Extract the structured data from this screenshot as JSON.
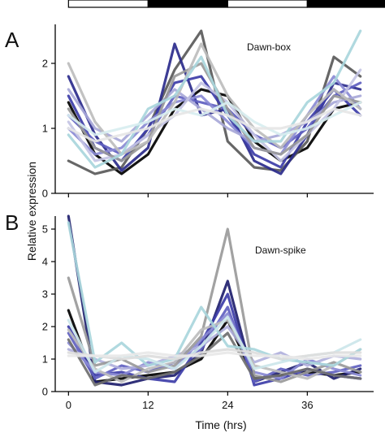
{
  "chart_data": [
    {
      "panel": "A",
      "type": "line",
      "annotation": "Dawn-box",
      "x": [
        0,
        4,
        8,
        12,
        16,
        20,
        24,
        28,
        32,
        36,
        40,
        44
      ],
      "xlim": [
        -2,
        46
      ],
      "ylim": [
        0,
        2.6
      ],
      "yticks": [
        0,
        1,
        2
      ],
      "series": [
        {
          "color": "#000000",
          "values": [
            1.4,
            0.6,
            0.3,
            0.6,
            1.3,
            1.6,
            1.5,
            0.8,
            0.5,
            0.7,
            1.3,
            1.4
          ]
        },
        {
          "color": "#5a5a5a",
          "values": [
            0.5,
            0.3,
            0.4,
            1.0,
            1.9,
            2.5,
            0.8,
            0.4,
            0.35,
            0.8,
            2.1,
            1.8
          ]
        },
        {
          "color": "#2b2b8c",
          "values": [
            1.8,
            0.9,
            0.35,
            0.7,
            2.3,
            1.2,
            1.3,
            0.5,
            0.3,
            0.9,
            1.7,
            1.6
          ]
        },
        {
          "color": "#3d3da8",
          "values": [
            1.5,
            0.7,
            0.5,
            1.0,
            1.7,
            1.8,
            1.2,
            0.6,
            0.4,
            1.1,
            1.6,
            1.2
          ]
        },
        {
          "color": "#6060c0",
          "values": [
            1.2,
            0.8,
            0.6,
            0.9,
            1.5,
            1.4,
            1.3,
            0.9,
            0.7,
            1.0,
            1.5,
            1.7
          ]
        },
        {
          "color": "#8a8ad4",
          "values": [
            1.0,
            0.6,
            0.7,
            1.1,
            1.4,
            1.5,
            1.1,
            0.7,
            0.6,
            1.2,
            1.8,
            1.3
          ]
        },
        {
          "color": "#a8a8d8",
          "values": [
            1.6,
            1.0,
            0.8,
            1.2,
            1.6,
            1.3,
            1.0,
            0.8,
            0.9,
            1.1,
            1.4,
            1.5
          ]
        },
        {
          "color": "#c4c4e4",
          "values": [
            1.1,
            0.5,
            0.6,
            0.9,
            1.2,
            1.7,
            1.4,
            0.9,
            0.5,
            0.9,
            1.3,
            1.9
          ]
        },
        {
          "color": "#9a9a9a",
          "values": [
            1.3,
            0.7,
            0.5,
            0.8,
            1.8,
            2.0,
            1.3,
            0.7,
            0.6,
            0.9,
            1.5,
            1.4
          ]
        },
        {
          "color": "#bdbdbd",
          "values": [
            2.0,
            1.1,
            0.6,
            0.8,
            1.4,
            2.3,
            1.5,
            1.0,
            0.7,
            1.2,
            1.6,
            1.3
          ]
        },
        {
          "color": "#a9d6dc",
          "values": [
            0.9,
            0.4,
            0.6,
            1.3,
            1.5,
            2.1,
            1.2,
            0.8,
            0.8,
            1.4,
            1.7,
            2.5
          ]
        },
        {
          "color": "#d8eef0",
          "values": [
            1.2,
            0.9,
            1.0,
            1.1,
            1.3,
            1.2,
            1.4,
            1.1,
            0.9,
            1.0,
            1.2,
            1.4
          ]
        },
        {
          "color": "#e6e6e6",
          "values": [
            1.0,
            0.8,
            0.9,
            1.0,
            1.2,
            1.3,
            1.2,
            1.0,
            1.0,
            1.1,
            1.3,
            1.2
          ]
        }
      ]
    },
    {
      "panel": "B",
      "type": "line",
      "annotation": "Dawn-spike",
      "x": [
        0,
        4,
        8,
        12,
        16,
        20,
        24,
        28,
        32,
        36,
        40,
        44
      ],
      "xlim": [
        -2,
        46
      ],
      "ylim": [
        0,
        5.4
      ],
      "yticks": [
        0,
        1,
        2,
        3,
        4,
        5
      ],
      "series": [
        {
          "color": "#000000",
          "values": [
            2.5,
            0.3,
            0.4,
            0.5,
            0.6,
            1.0,
            2.2,
            0.4,
            0.5,
            0.6,
            0.5,
            0.6
          ]
        },
        {
          "color": "#1f1f6e",
          "values": [
            5.4,
            0.3,
            0.2,
            0.4,
            0.5,
            1.2,
            3.4,
            0.3,
            0.6,
            0.9,
            0.4,
            0.7
          ]
        },
        {
          "color": "#3d3da8",
          "values": [
            2.0,
            0.5,
            0.6,
            0.4,
            0.3,
            1.5,
            3.0,
            0.2,
            0.4,
            0.7,
            0.5,
            0.4
          ]
        },
        {
          "color": "#6060c0",
          "values": [
            1.8,
            0.4,
            0.8,
            0.6,
            0.9,
            1.3,
            2.6,
            0.3,
            0.7,
            0.5,
            0.6,
            0.8
          ]
        },
        {
          "color": "#8a8ad4",
          "values": [
            1.5,
            0.6,
            0.5,
            0.9,
            0.7,
            1.6,
            2.4,
            0.6,
            0.4,
            1.0,
            0.7,
            0.5
          ]
        },
        {
          "color": "#b0b0dc",
          "values": [
            1.3,
            1.0,
            0.7,
            0.8,
            1.1,
            1.4,
            2.0,
            0.9,
            1.2,
            0.8,
            1.1,
            1.0
          ]
        },
        {
          "color": "#9a9a9a",
          "values": [
            3.5,
            0.8,
            1.0,
            0.6,
            0.8,
            1.7,
            5.0,
            0.5,
            0.3,
            0.6,
            0.9,
            0.6
          ]
        },
        {
          "color": "#bdbdbd",
          "values": [
            1.9,
            0.7,
            0.3,
            0.7,
            0.9,
            1.9,
            2.2,
            0.8,
            0.6,
            0.4,
            0.8,
            1.3
          ]
        },
        {
          "color": "#6f6f6f",
          "values": [
            1.6,
            0.2,
            0.5,
            0.4,
            0.6,
            1.1,
            1.8,
            0.4,
            0.5,
            0.7,
            0.5,
            0.4
          ]
        },
        {
          "color": "#a9d6dc",
          "values": [
            5.2,
            0.9,
            1.5,
            0.8,
            1.0,
            2.6,
            1.4,
            1.3,
            1.0,
            0.9,
            0.8,
            1.3
          ]
        },
        {
          "color": "#cce6ea",
          "values": [
            2.2,
            0.6,
            1.1,
            1.0,
            0.7,
            1.4,
            2.3,
            0.7,
            0.9,
            1.1,
            1.2,
            1.6
          ]
        },
        {
          "color": "#dddddd",
          "values": [
            1.2,
            1.1,
            1.0,
            1.1,
            1.0,
            1.2,
            1.3,
            1.2,
            1.0,
            1.1,
            1.2,
            1.2
          ]
        },
        {
          "color": "#e8e8e8",
          "values": [
            1.1,
            1.1,
            1.1,
            1.2,
            1.1,
            1.1,
            1.2,
            1.1,
            1.1,
            1.0,
            1.1,
            1.1
          ]
        }
      ]
    }
  ],
  "shared": {
    "xticks": [
      0,
      12,
      24,
      36
    ],
    "xlabel": "Time (hrs)",
    "ylabel": "Relative expression",
    "light_bar": [
      {
        "from": 0,
        "to": 12,
        "state": "light"
      },
      {
        "from": 12,
        "to": 24,
        "state": "dark"
      },
      {
        "from": 24,
        "to": 36,
        "state": "light"
      },
      {
        "from": 36,
        "to": 48,
        "state": "dark"
      }
    ]
  }
}
